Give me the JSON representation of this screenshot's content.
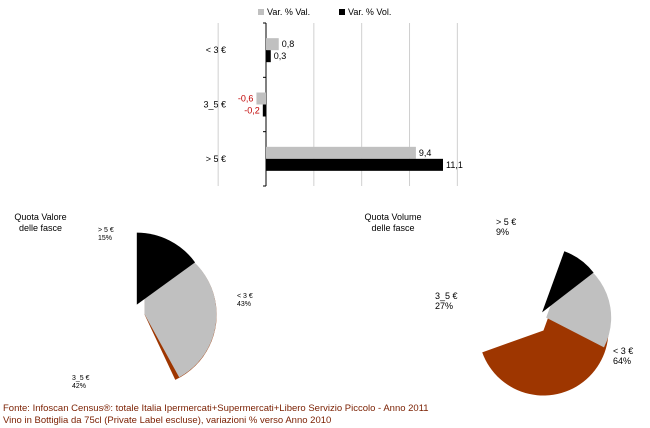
{
  "chart_data": [
    {
      "type": "bar",
      "orientation": "horizontal",
      "categories": [
        "< 3 €",
        "3_5 €",
        "> 5 €"
      ],
      "series": [
        {
          "name": "Var. % Val.",
          "values": [
            0.8,
            -0.6,
            9.4
          ],
          "labels": [
            "0,8",
            "-0,6",
            "9,4"
          ],
          "color": "#c0c0c0"
        },
        {
          "name": "Var. % Vol.",
          "values": [
            0.3,
            -0.2,
            11.1
          ],
          "labels": [
            "0,3",
            "-0,2",
            "11,1"
          ],
          "color": "#000000"
        }
      ],
      "negative_label_color": "#c00000",
      "xlim": [
        -3,
        12
      ],
      "grid": "vertical",
      "legend": "top"
    },
    {
      "type": "pie",
      "title": "Quota Valore delle fasce",
      "slices": [
        {
          "label": "< 3 €",
          "value": 43,
          "pct": "43%",
          "color": "#9e3600"
        },
        {
          "label": "3_5 €",
          "value": 42,
          "pct": "42%",
          "color": "#c0c0c0"
        },
        {
          "label": "> 5 €",
          "value": 15,
          "pct": "15%",
          "color": "#000000"
        }
      ]
    },
    {
      "type": "pie",
      "title": "Quota Volume delle fasce",
      "slices": [
        {
          "label": "< 3 €",
          "value": 64,
          "pct": "64%",
          "color": "#9e3600"
        },
        {
          "label": "3_5 €",
          "value": 27,
          "pct": "27%",
          "color": "#c0c0c0"
        },
        {
          "label": "> 5 €",
          "value": 9,
          "pct": "9%",
          "color": "#000000"
        }
      ]
    }
  ],
  "captions": {
    "valore": [
      "Quota Valore",
      "delle fasce"
    ],
    "volume": [
      "Quota Volume",
      "delle fasce"
    ]
  },
  "footnote": {
    "line1": "Fonte: Infoscan Census®: totale Italia Ipermercati+Supermercati+Libero Servizio Piccolo - Anno 2011",
    "line2": "Vino in Bottiglia da 75cl (Private Label escluse), variazioni % verso Anno 2010"
  }
}
